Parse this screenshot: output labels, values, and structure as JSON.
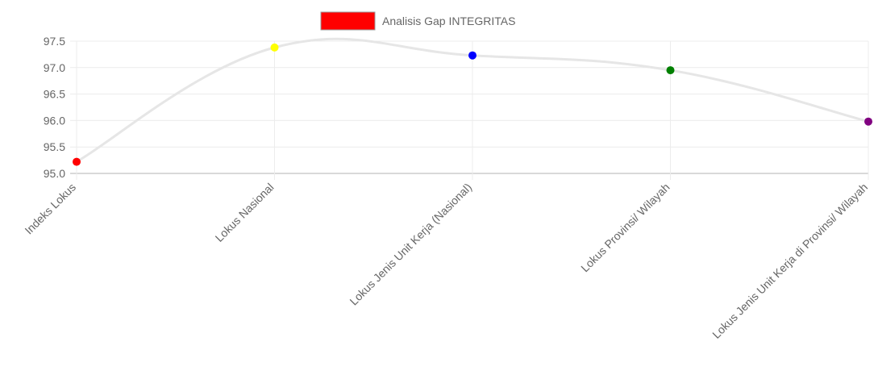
{
  "chart_data": {
    "type": "line",
    "categories": [
      "Indeks Lokus",
      "Lokus Nasional",
      "Lokus Jenis Unit Kerja (Nasional)",
      "Lokus Provinsi/ Wilayah",
      "Lokus Jenis Unit Kerja di Provinsi/ Wilayah"
    ],
    "series": [
      {
        "name": "Analisis Gap INTEGRITAS",
        "values": [
          95.22,
          97.38,
          97.23,
          96.95,
          95.98
        ],
        "legend_color": "#ff0000",
        "line_color": "#e6e6e6",
        "point_colors": [
          "#ff0000",
          "#ffff00",
          "#0000ff",
          "#008000",
          "#800080"
        ]
      }
    ],
    "ylim": [
      95.0,
      97.5
    ],
    "yticks": [
      "95.0",
      "95.5",
      "96.0",
      "96.5",
      "97.0",
      "97.5"
    ],
    "ytick_values": [
      95.0,
      95.5,
      96.0,
      96.5,
      97.0,
      97.5
    ],
    "grid": true,
    "legend_position": "top-center"
  }
}
